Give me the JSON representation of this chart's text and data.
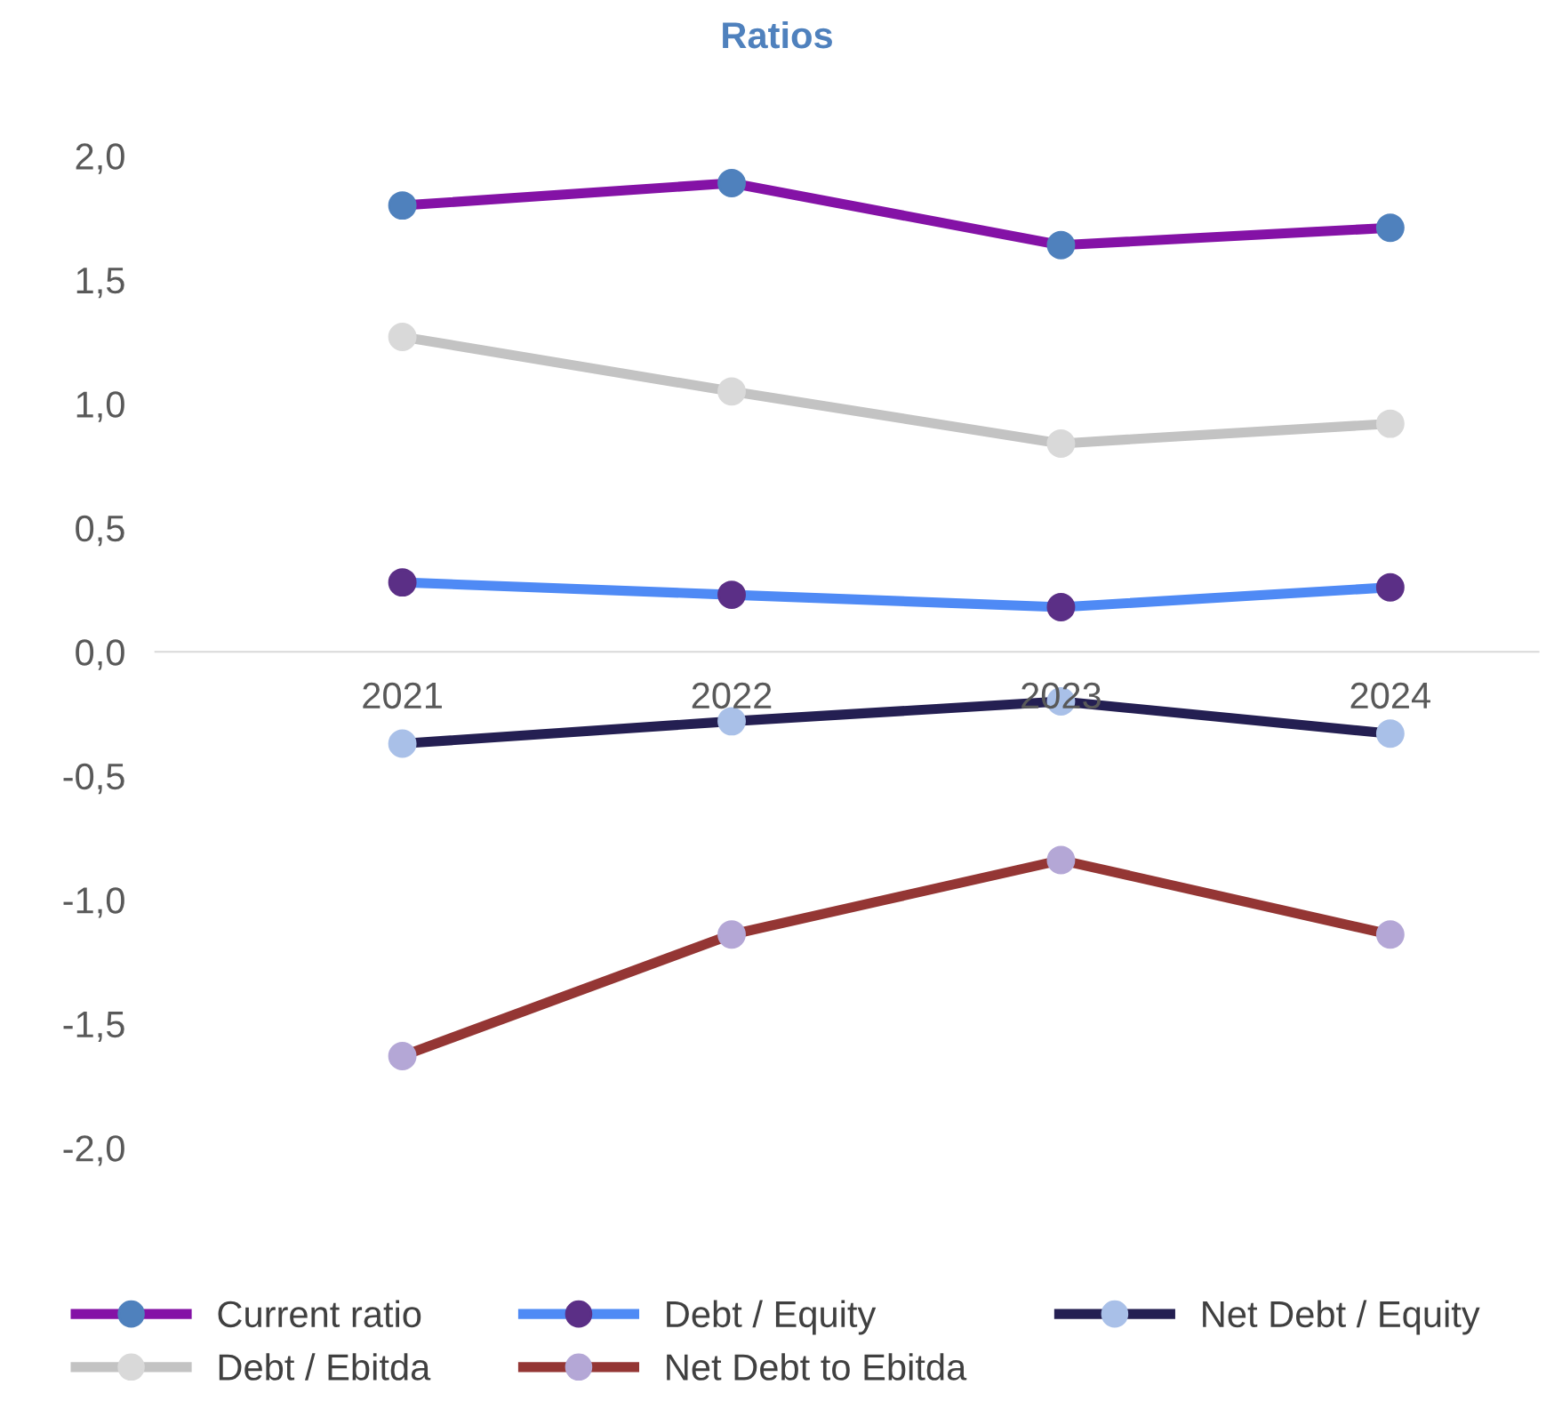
{
  "chart_data": {
    "type": "line",
    "title": "Ratios",
    "categories": [
      "2021",
      "2022",
      "2023",
      "2024"
    ],
    "series": [
      {
        "name": "Current ratio",
        "color": "#8412a6",
        "colors": [
          "#4f81bd",
          "#4f81bd",
          "#4f81bd",
          "#4f81bd"
        ],
        "values": [
          1.8,
          1.89,
          1.64,
          1.71
        ]
      },
      {
        "name": "Debt / Equity",
        "color": "#4f8af5",
        "colors": [
          "#5b2f86",
          "#5b2f86",
          "#5b2f86",
          "#5b2f86"
        ],
        "values": [
          0.28,
          0.23,
          0.18,
          0.26
        ]
      },
      {
        "name": "Net Debt / Equity",
        "color": "#241f52",
        "colors": [
          "#a9c0e8",
          "#a9c0e8",
          "#a9c0e8",
          "#a9c0e8"
        ],
        "values": [
          -0.37,
          -0.28,
          -0.2,
          -0.33
        ]
      },
      {
        "name": "Debt / Ebitda",
        "color": "#c3c3c3",
        "colors": [
          "#d9d9d9",
          "#d9d9d9",
          "#d9d9d9",
          "#d9d9d9"
        ],
        "values": [
          1.27,
          1.05,
          0.84,
          0.92
        ]
      },
      {
        "name": "Net Debt to Ebitda",
        "color": "#943634",
        "colors": [
          "#b4a7d6",
          "#b4a7d6",
          "#b4a7d6",
          "#b4a7d6"
        ],
        "values": [
          -1.63,
          -1.14,
          -0.84,
          -1.14
        ]
      }
    ],
    "ylim": [
      -2.0,
      2.0
    ],
    "yticks": [
      {
        "value": -2,
        "label": "-2,0"
      },
      {
        "value": -1.5,
        "label": "-1,5"
      },
      {
        "value": -1,
        "label": "-1,0"
      },
      {
        "value": -0.5,
        "label": "-0,5"
      },
      {
        "value": 0,
        "label": "0,0"
      },
      {
        "value": 0.5,
        "label": "0,5"
      },
      {
        "value": 1,
        "label": "1,0"
      },
      {
        "value": 1.5,
        "label": "1,5"
      },
      {
        "value": 2,
        "label": "2,0"
      }
    ],
    "grid": false,
    "legend": "bottom",
    "marker": "circle",
    "line_style": "solid"
  }
}
